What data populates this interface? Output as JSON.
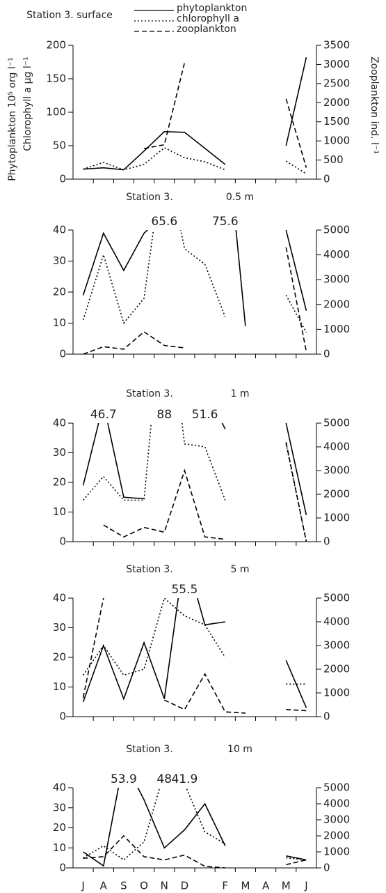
{
  "chart_data": [
    {
      "type": "line",
      "title": "Station 3. surface",
      "legend": "top",
      "ylabel": "Phytoplankton 10⁵ org l⁻¹",
      "ylabel2": "Chlorophyll a µg l⁻¹",
      "y2label": "Zooplankton ind. l⁻¹",
      "ylim": [
        0,
        200
      ],
      "yticks": [
        0,
        50,
        100,
        150,
        200
      ],
      "y2lim": [
        0,
        3500
      ],
      "y2ticks": [
        0,
        500,
        1000,
        1500,
        2000,
        2500,
        3000,
        3500
      ],
      "series": [
        {
          "name": "phytoplankton",
          "color": "#000",
          "dash": "solid",
          "values": [
            15,
            17,
            14,
            42,
            71,
            70,
            46,
            22,
            null,
            null,
            50,
            182
          ]
        },
        {
          "name": "chlorophyll a",
          "color": "#000",
          "dash": "dotted",
          "values": [
            15,
            25,
            14,
            22,
            47,
            32,
            26,
            14,
            null,
            null,
            27,
            8
          ]
        },
        {
          "name": "zooplankton",
          "color": "#000",
          "dash": "dashed",
          "axis": "y2",
          "values": [
            null,
            null,
            null,
            800,
            900,
            3050,
            null,
            null,
            null,
            null,
            2100,
            300
          ]
        }
      ]
    },
    {
      "type": "line",
      "title": "Station 3.",
      "subtitle": "0.5 m",
      "ylim": [
        0,
        40
      ],
      "yticks": [
        0,
        10,
        20,
        30,
        40
      ],
      "y2lim": [
        0,
        5000
      ],
      "y2ticks": [
        0,
        1000,
        2000,
        3000,
        4000,
        5000
      ],
      "series": [
        {
          "color": "#000",
          "dash": "solid",
          "values": [
            19,
            39,
            27,
            39,
            45,
            null,
            null,
            75.6,
            9,
            null,
            40,
            14
          ],
          "value_labels": [
            null,
            null,
            null,
            null,
            null,
            null,
            null,
            "75.6",
            null,
            null,
            null,
            null
          ]
        },
        {
          "color": "#000",
          "dash": "dotted",
          "values": [
            11,
            32,
            10,
            18,
            65.6,
            34,
            29,
            12,
            null,
            null,
            19,
            7
          ],
          "value_labels": [
            null,
            null,
            null,
            null,
            "65.6",
            null,
            null,
            null,
            null,
            null,
            null,
            null
          ]
        },
        {
          "color": "#000",
          "dash": "dashed",
          "axis": "y2",
          "values": [
            0,
            300,
            200,
            900,
            350,
            250,
            null,
            null,
            null,
            null,
            4300,
            100
          ]
        }
      ]
    },
    {
      "type": "line",
      "title": "Station 3.",
      "subtitle": "1 m",
      "ylim": [
        0,
        40
      ],
      "yticks": [
        0,
        10,
        20,
        30,
        40
      ],
      "y2lim": [
        0,
        5000
      ],
      "y2ticks": [
        0,
        1000,
        2000,
        3000,
        4000,
        5000
      ],
      "series": [
        {
          "color": "#000",
          "dash": "solid",
          "values": [
            19,
            46.7,
            15,
            14.5,
            null,
            null,
            51.6,
            38,
            null,
            null,
            40,
            9
          ],
          "value_labels": [
            null,
            "46.7",
            null,
            null,
            null,
            null,
            "51.6",
            null,
            null,
            null,
            null,
            null
          ]
        },
        {
          "color": "#000",
          "dash": "dotted",
          "values": [
            14,
            22,
            14,
            14,
            88,
            33,
            32,
            14,
            null,
            null,
            33,
            0
          ],
          "value_labels": [
            null,
            null,
            null,
            null,
            "88",
            null,
            null,
            null,
            null,
            null,
            null,
            null
          ]
        },
        {
          "color": "#000",
          "dash": "dashed",
          "axis": "y2",
          "values": [
            null,
            700,
            200,
            600,
            400,
            3000,
            200,
            100,
            null,
            null,
            4200,
            0
          ]
        }
      ]
    },
    {
      "type": "line",
      "title": "Station 3.",
      "subtitle": "5 m",
      "ylim": [
        0,
        40
      ],
      "yticks": [
        0,
        10,
        20,
        30,
        40
      ],
      "y2lim": [
        0,
        5000
      ],
      "y2ticks": [
        0,
        1000,
        2000,
        3000,
        4000,
        5000
      ],
      "series": [
        {
          "color": "#000",
          "dash": "solid",
          "values": [
            5,
            24,
            6,
            25,
            6,
            55.5,
            31,
            32,
            null,
            null,
            19,
            3
          ],
          "value_labels": [
            null,
            null,
            null,
            null,
            null,
            "55.5",
            null,
            null,
            null,
            null,
            null,
            null
          ]
        },
        {
          "color": "#000",
          "dash": "dotted",
          "values": [
            14,
            24,
            14,
            16,
            40,
            34,
            31,
            20,
            null,
            null,
            11,
            11
          ]
        },
        {
          "color": "#000",
          "dash": "dashed",
          "axis": "y2",
          "values": [
            800,
            5000,
            null,
            null,
            700,
            300,
            1800,
            200,
            150,
            null,
            300,
            250
          ]
        }
      ]
    },
    {
      "type": "line",
      "title": "Station 3.",
      "subtitle": "10 m",
      "categories": [
        "J",
        "A",
        "S",
        "O",
        "N",
        "D",
        null,
        "F",
        "M",
        "A",
        "M",
        "J"
      ],
      "ylim": [
        0,
        40
      ],
      "yticks": [
        0,
        10,
        20,
        30,
        40
      ],
      "y2lim": [
        0,
        5000
      ],
      "y2ticks": [
        0,
        1000,
        2000,
        3000,
        4000,
        5000
      ],
      "series": [
        {
          "color": "#000",
          "dash": "solid",
          "values": [
            8,
            1,
            53.9,
            34,
            10,
            19,
            32,
            11,
            null,
            null,
            6,
            4
          ],
          "value_labels": [
            null,
            null,
            "53.9",
            null,
            null,
            null,
            null,
            null,
            null,
            null,
            null,
            null
          ]
        },
        {
          "color": "#000",
          "dash": "dotted",
          "values": [
            5,
            11,
            4,
            13,
            48,
            41.9,
            18,
            12,
            null,
            null,
            5,
            4
          ],
          "value_labels": [
            null,
            null,
            null,
            null,
            "48",
            "41.9",
            null,
            null,
            null,
            null,
            null,
            null
          ]
        },
        {
          "color": "#000",
          "dash": "dashed",
          "axis": "y2",
          "values": [
            600,
            700,
            2000,
            700,
            500,
            800,
            100,
            0,
            null,
            null,
            200,
            500
          ]
        }
      ]
    }
  ]
}
